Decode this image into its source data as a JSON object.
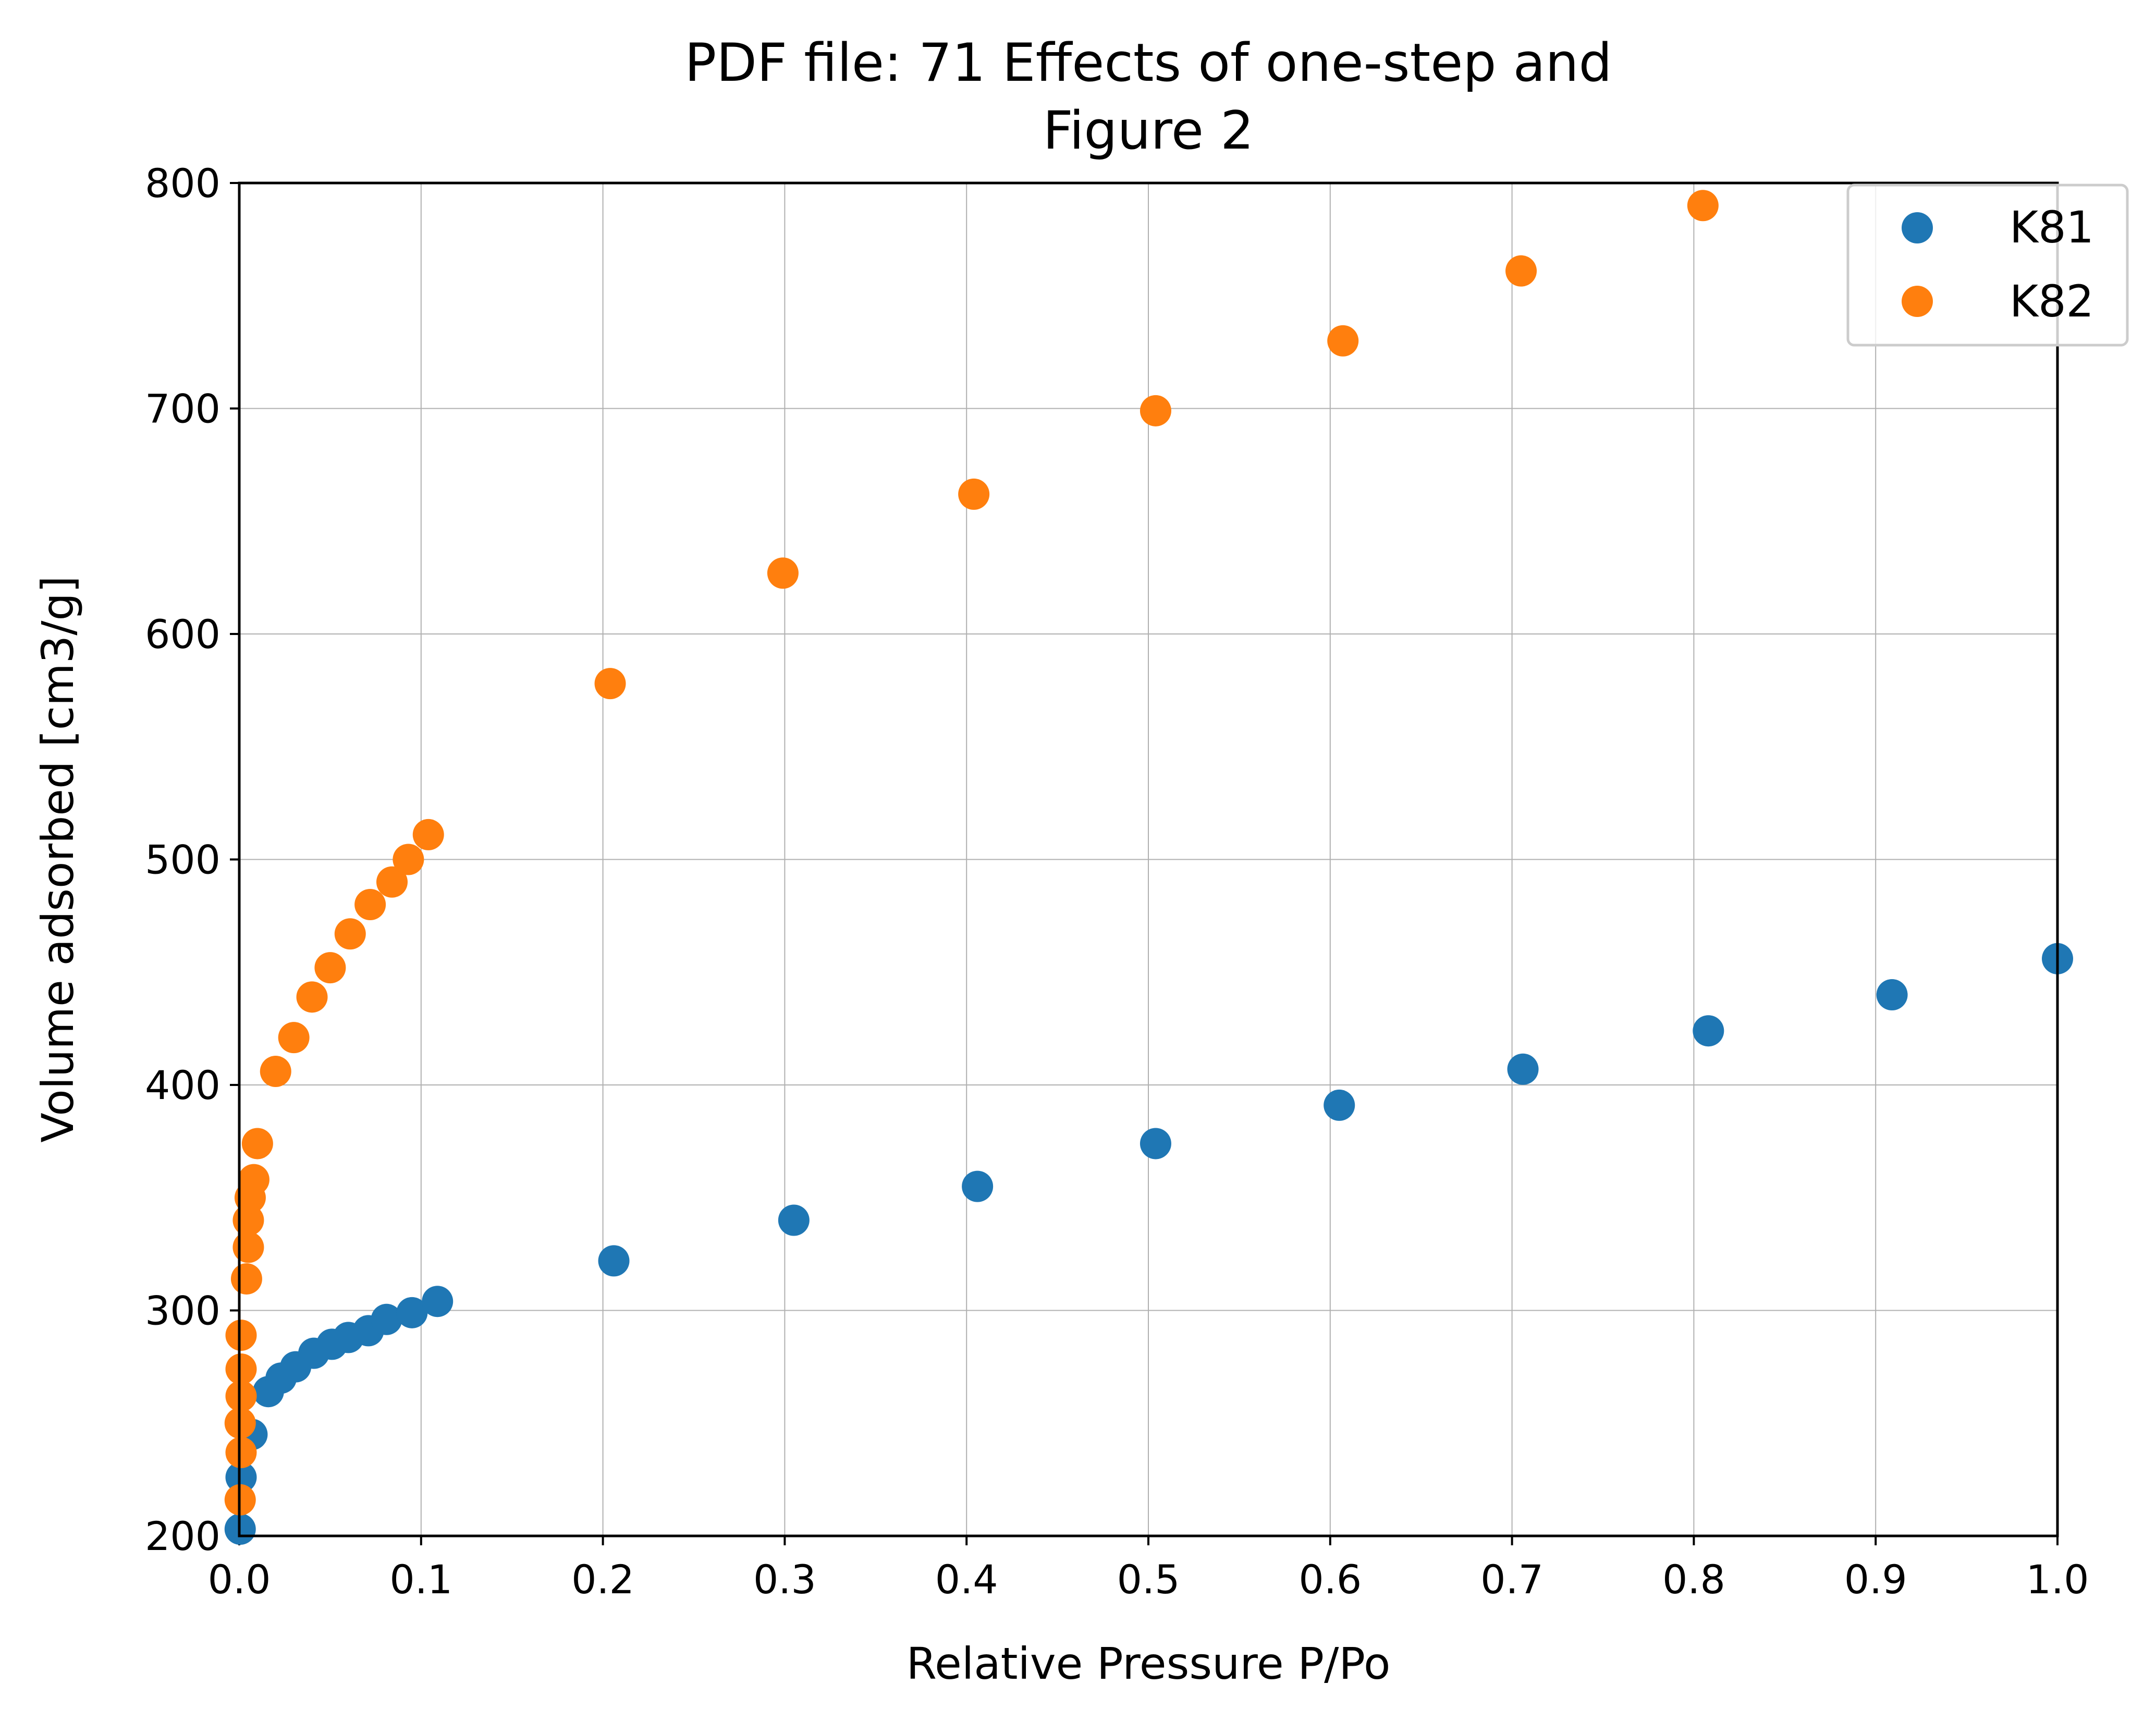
{
  "chart_data": {
    "type": "scatter",
    "title": "PDF file: 71 Effects of one-step and",
    "subtitle": "Figure 2",
    "xlabel": "Relative Pressure P/Po",
    "ylabel": "Volume adsorbed [cm3/g]",
    "xlim": [
      0.0,
      1.0
    ],
    "ylim": [
      200,
      800
    ],
    "xticks": [
      "0.0",
      "0.1",
      "0.2",
      "0.3",
      "0.4",
      "0.5",
      "0.6",
      "0.7",
      "0.8",
      "0.9",
      "1.0"
    ],
    "yticks": [
      "200",
      "300",
      "400",
      "500",
      "600",
      "700",
      "800"
    ],
    "grid": true,
    "legend_position": "top-right",
    "series": [
      {
        "name": "K81",
        "color": "#1f77b4",
        "points": [
          [
            0.0005,
            203
          ],
          [
            0.001,
            226
          ],
          [
            0.007,
            245
          ],
          [
            0.016,
            264
          ],
          [
            0.023,
            270
          ],
          [
            0.031,
            275
          ],
          [
            0.041,
            281
          ],
          [
            0.051,
            285
          ],
          [
            0.06,
            288
          ],
          [
            0.071,
            291
          ],
          [
            0.081,
            296
          ],
          [
            0.095,
            299
          ],
          [
            0.109,
            304
          ],
          [
            0.206,
            322
          ],
          [
            0.305,
            340
          ],
          [
            0.406,
            355
          ],
          [
            0.504,
            374
          ],
          [
            0.605,
            391
          ],
          [
            0.706,
            407
          ],
          [
            0.808,
            424
          ],
          [
            0.909,
            440
          ],
          [
            1.0,
            456
          ]
        ]
      },
      {
        "name": "K82",
        "color": "#ff7f0e",
        "points": [
          [
            0.0005,
            216
          ],
          [
            0.001,
            237
          ],
          [
            0.0005,
            250
          ],
          [
            0.001,
            262
          ],
          [
            0.001,
            274
          ],
          [
            0.001,
            289
          ],
          [
            0.004,
            314
          ],
          [
            0.005,
            328
          ],
          [
            0.005,
            340
          ],
          [
            0.006,
            350
          ],
          [
            0.008,
            358
          ],
          [
            0.01,
            374
          ],
          [
            0.02,
            406
          ],
          [
            0.03,
            421
          ],
          [
            0.04,
            439
          ],
          [
            0.05,
            452
          ],
          [
            0.061,
            467
          ],
          [
            0.072,
            480
          ],
          [
            0.084,
            490
          ],
          [
            0.093,
            500
          ],
          [
            0.104,
            511
          ],
          [
            0.204,
            578
          ],
          [
            0.299,
            627
          ],
          [
            0.404,
            662
          ],
          [
            0.504,
            699
          ],
          [
            0.607,
            730
          ],
          [
            0.705,
            761
          ],
          [
            0.805,
            790
          ]
        ]
      }
    ]
  }
}
